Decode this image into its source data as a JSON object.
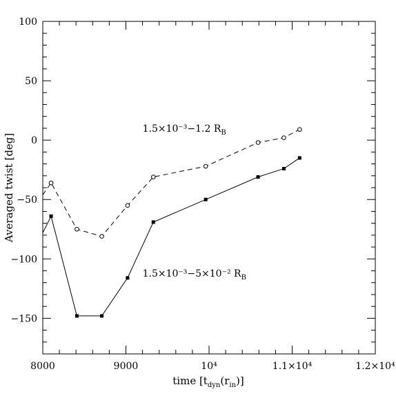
{
  "chart_data": {
    "type": "line",
    "xlabel": "time [t_dyn(r_in)]",
    "ylabel": "Averaged twist [deg]",
    "xlim": [
      8000,
      12000
    ],
    "ylim": [
      -180,
      100
    ],
    "xticks": [
      {
        "value": 8000,
        "label": "8000"
      },
      {
        "value": 9000,
        "label": "9000"
      },
      {
        "value": 10000,
        "label": "10⁴"
      },
      {
        "value": 11000,
        "label": "1.1×10⁴"
      },
      {
        "value": 12000,
        "label": "1.2×10⁴"
      }
    ],
    "yticks": [
      {
        "value": -150,
        "label": "−150"
      },
      {
        "value": -100,
        "label": "−100"
      },
      {
        "value": -50,
        "label": "−50"
      },
      {
        "value": 0,
        "label": "0"
      },
      {
        "value": 50,
        "label": "50"
      },
      {
        "value": 100,
        "label": "100"
      }
    ],
    "series": [
      {
        "name": "1.5×10⁻³−1.2 R_B",
        "style": "dashed",
        "marker": "open-circle",
        "color": "#000000",
        "x": [
          8000,
          8100,
          8410,
          8710,
          9020,
          9330,
          9960,
          10590,
          10900,
          11090
        ],
        "y": [
          -46,
          -36,
          -75,
          -81,
          -55,
          -31,
          -22,
          -2,
          2,
          9
        ]
      },
      {
        "name": "1.5×10⁻³−5×10⁻² R_B",
        "style": "solid",
        "marker": "filled-square",
        "color": "#000000",
        "x": [
          8000,
          8100,
          8410,
          8710,
          9020,
          9330,
          9960,
          10590,
          10900,
          11090
        ],
        "y": [
          -78,
          -64,
          -148,
          -148,
          -116,
          -69,
          -50,
          -31,
          -24,
          -15
        ]
      }
    ],
    "annotations": [
      {
        "text": "1.5×10⁻³−1.2 R",
        "sub": "B",
        "x": 9200,
        "y": 10
      },
      {
        "text": "1.5×10⁻³−5×10⁻² R",
        "sub": "B",
        "x": 9200,
        "y": -112
      }
    ]
  }
}
